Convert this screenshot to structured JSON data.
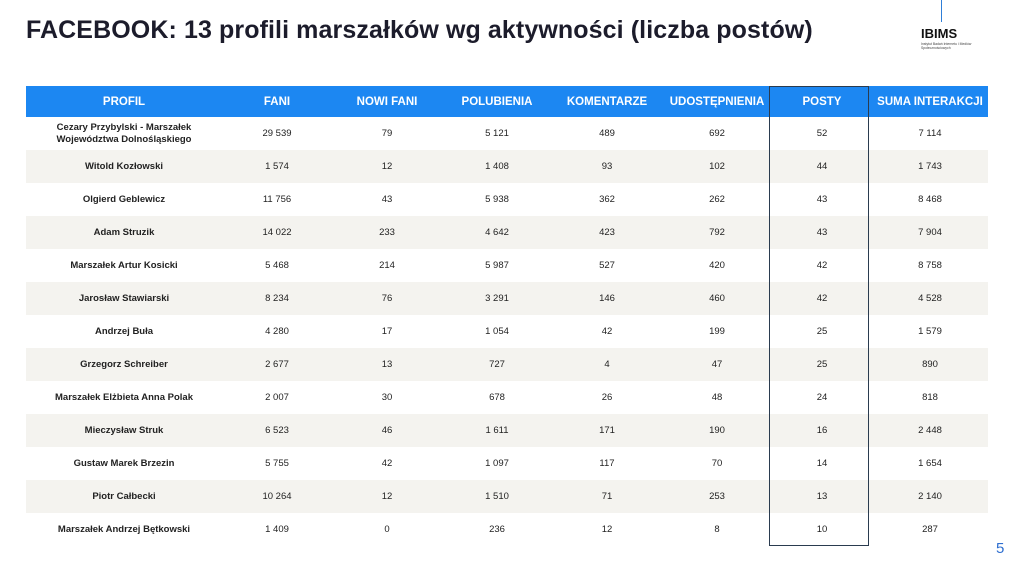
{
  "title": "FACEBOOK: 13 profili marszałków wg aktywności (liczba postów)",
  "logo": {
    "name": "IBIMS",
    "subtitle": "Instytut Badań Internetu i Mediów Społecznościowych"
  },
  "columns": [
    "PROFIL",
    "FANI",
    "NOWI FANI",
    "POLUBIENIA",
    "KOMENTARZE",
    "UDOSTĘPNIENIA",
    "POSTY",
    "SUMA INTERAKCJI"
  ],
  "rows": [
    [
      "Cezary Przybylski - Marszałek Województwa Dolnośląskiego",
      "29 539",
      "79",
      "5 121",
      "489",
      "692",
      "52",
      "7 114"
    ],
    [
      "Witold Kozłowski",
      "1 574",
      "12",
      "1 408",
      "93",
      "102",
      "44",
      "1 743"
    ],
    [
      "Olgierd Geblewicz",
      "11 756",
      "43",
      "5 938",
      "362",
      "262",
      "43",
      "8 468"
    ],
    [
      "Adam Struzik",
      "14 022",
      "233",
      "4 642",
      "423",
      "792",
      "43",
      "7 904"
    ],
    [
      "Marszałek Artur Kosicki",
      "5 468",
      "214",
      "5 987",
      "527",
      "420",
      "42",
      "8 758"
    ],
    [
      "Jarosław Stawiarski",
      "8 234",
      "76",
      "3 291",
      "146",
      "460",
      "42",
      "4 528"
    ],
    [
      "Andrzej Buła",
      "4 280",
      "17",
      "1 054",
      "42",
      "199",
      "25",
      "1 579"
    ],
    [
      "Grzegorz Schreiber",
      "2 677",
      "13",
      "727",
      "4",
      "47",
      "25",
      "890"
    ],
    [
      "Marszałek Elżbieta Anna Polak",
      "2 007",
      "30",
      "678",
      "26",
      "48",
      "24",
      "818"
    ],
    [
      "Mieczysław Struk",
      "6 523",
      "46",
      "1 611",
      "171",
      "190",
      "16",
      "2 448"
    ],
    [
      "Gustaw Marek Brzezin",
      "5 755",
      "42",
      "1 097",
      "117",
      "70",
      "14",
      "1 654"
    ],
    [
      "Piotr Całbecki",
      "10 264",
      "12",
      "1 510",
      "71",
      "253",
      "13",
      "2 140"
    ],
    [
      "Marszałek Andrzej Bętkowski",
      "1 409",
      "0",
      "236",
      "12",
      "8",
      "10",
      "287"
    ]
  ],
  "page_number": "5",
  "colors": {
    "header_bg": "#1c87f2",
    "row_alt_bg": "#f4f3ef",
    "title": "#1c1c2b",
    "accent": "#2f6fd0"
  }
}
